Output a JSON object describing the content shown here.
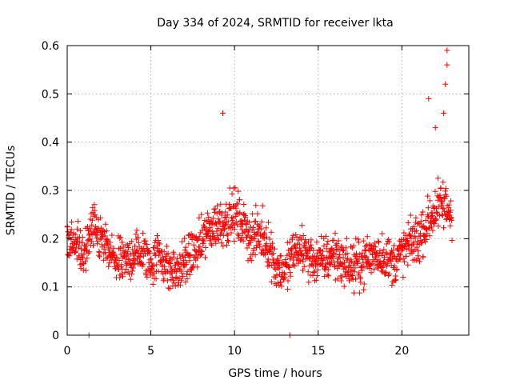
{
  "chart_data": {
    "type": "scatter",
    "title": "Day 334 of 2024, SRMTID for receiver lkta",
    "xlabel": "GPS time / hours",
    "ylabel": "SRMTID / TECUs",
    "xlim": [
      0,
      24
    ],
    "ylim": [
      0,
      0.6
    ],
    "xticks": [
      0,
      5,
      10,
      15,
      20
    ],
    "xtick_labels": [
      "0",
      "5",
      "10",
      "15",
      "20"
    ],
    "yticks": [
      0,
      0.1,
      0.2,
      0.3,
      0.4,
      0.5,
      0.6
    ],
    "ytick_labels": [
      "0",
      "0.1",
      "0.2",
      "0.3",
      "0.4",
      "0.5",
      "0.6"
    ],
    "grid": true,
    "marker": "plus",
    "color": "#ff0000",
    "series": [
      {
        "name": "SRMTID",
        "profile_x": [
          0,
          0.5,
          1.0,
          1.5,
          2.0,
          2.5,
          3.0,
          3.5,
          4.0,
          4.5,
          5.0,
          5.5,
          6.0,
          6.5,
          7.0,
          7.5,
          8.0,
          8.5,
          9.0,
          9.5,
          10.0,
          10.5,
          11.0,
          11.5,
          12.0,
          12.5,
          13.0,
          13.5,
          14.0,
          14.5,
          15.0,
          15.5,
          16.0,
          16.5,
          17.0,
          17.5,
          18.0,
          18.5,
          19.0,
          19.5,
          20.0,
          20.5,
          21.0,
          21.5,
          22.0,
          22.5,
          23.0
        ],
        "profile_y": [
          0.2,
          0.18,
          0.17,
          0.22,
          0.2,
          0.17,
          0.15,
          0.15,
          0.17,
          0.17,
          0.15,
          0.17,
          0.14,
          0.13,
          0.15,
          0.17,
          0.19,
          0.22,
          0.23,
          0.24,
          0.25,
          0.23,
          0.2,
          0.21,
          0.19,
          0.14,
          0.13,
          0.17,
          0.18,
          0.16,
          0.15,
          0.16,
          0.17,
          0.15,
          0.14,
          0.15,
          0.16,
          0.17,
          0.16,
          0.15,
          0.17,
          0.19,
          0.2,
          0.23,
          0.26,
          0.27,
          0.25
        ],
        "spread": 0.06,
        "step_hours": 0.0167,
        "outliers": [
          {
            "x": 1.3,
            "y": 0.0
          },
          {
            "x": 13.3,
            "y": 0.0
          },
          {
            "x": 9.3,
            "y": 0.46
          },
          {
            "x": 21.6,
            "y": 0.49
          },
          {
            "x": 22.7,
            "y": 0.59
          },
          {
            "x": 22.7,
            "y": 0.56
          },
          {
            "x": 22.6,
            "y": 0.52
          },
          {
            "x": 22.0,
            "y": 0.43
          },
          {
            "x": 22.5,
            "y": 0.46
          }
        ]
      }
    ]
  }
}
